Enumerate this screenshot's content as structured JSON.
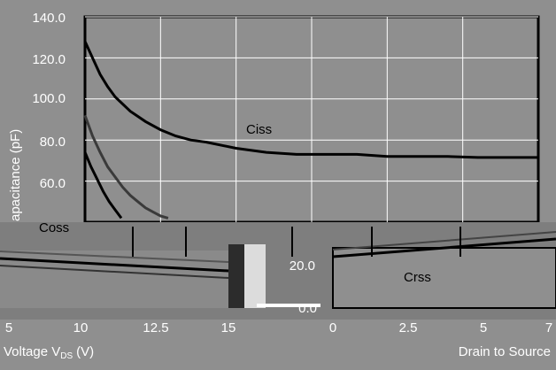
{
  "chart_data": [
    {
      "panel": "upper",
      "type": "line",
      "ylabel": "apacitance (pF)",
      "y_ticks": [
        "140.0",
        "120.0",
        "100.0",
        "80.0",
        "60.0"
      ],
      "ylim": [
        40,
        140
      ],
      "xlim": [
        0,
        30
      ],
      "grid": true,
      "series": [
        {
          "name": "Ciss",
          "x": [
            0,
            0.5,
            1,
            1.5,
            2,
            3,
            4,
            5,
            6,
            7,
            8,
            10,
            12,
            14,
            16,
            18,
            20,
            22,
            24,
            26,
            28,
            30
          ],
          "y": [
            128,
            120,
            112,
            106,
            101,
            94,
            89,
            85,
            82,
            80,
            79,
            76,
            74,
            73,
            73,
            73,
            72,
            72,
            72,
            71.5,
            71.5,
            71.5
          ]
        },
        {
          "name": "Coss",
          "x": [
            0,
            0.5,
            1,
            1.5,
            2,
            2.5,
            3,
            3.5,
            4,
            4.5,
            5,
            5.5
          ],
          "y": [
            92,
            82,
            74,
            67,
            62,
            57,
            53,
            50,
            47,
            45,
            43,
            42
          ]
        },
        {
          "name": "",
          "x": [
            0,
            0.4,
            0.8,
            1.2,
            1.6,
            2.0,
            2.4
          ],
          "y": [
            74,
            67,
            61,
            55,
            50,
            46,
            42
          ]
        }
      ]
    },
    {
      "panel": "lower",
      "type": "line",
      "xlabel_left": "Voltage V",
      "xlabel_left_sub": "DS",
      "xlabel_left_unit": "(V)",
      "xlabel_right": "Drain to Source",
      "x_ticks_left": [
        "5",
        "10",
        "12.5",
        "15"
      ],
      "x_ticks_right": [
        "0",
        "2.5",
        "5",
        "7"
      ],
      "y_ticks_mid": [
        "20.0",
        "0.0"
      ],
      "series_labels": [
        "Coss",
        "Crss"
      ]
    }
  ]
}
